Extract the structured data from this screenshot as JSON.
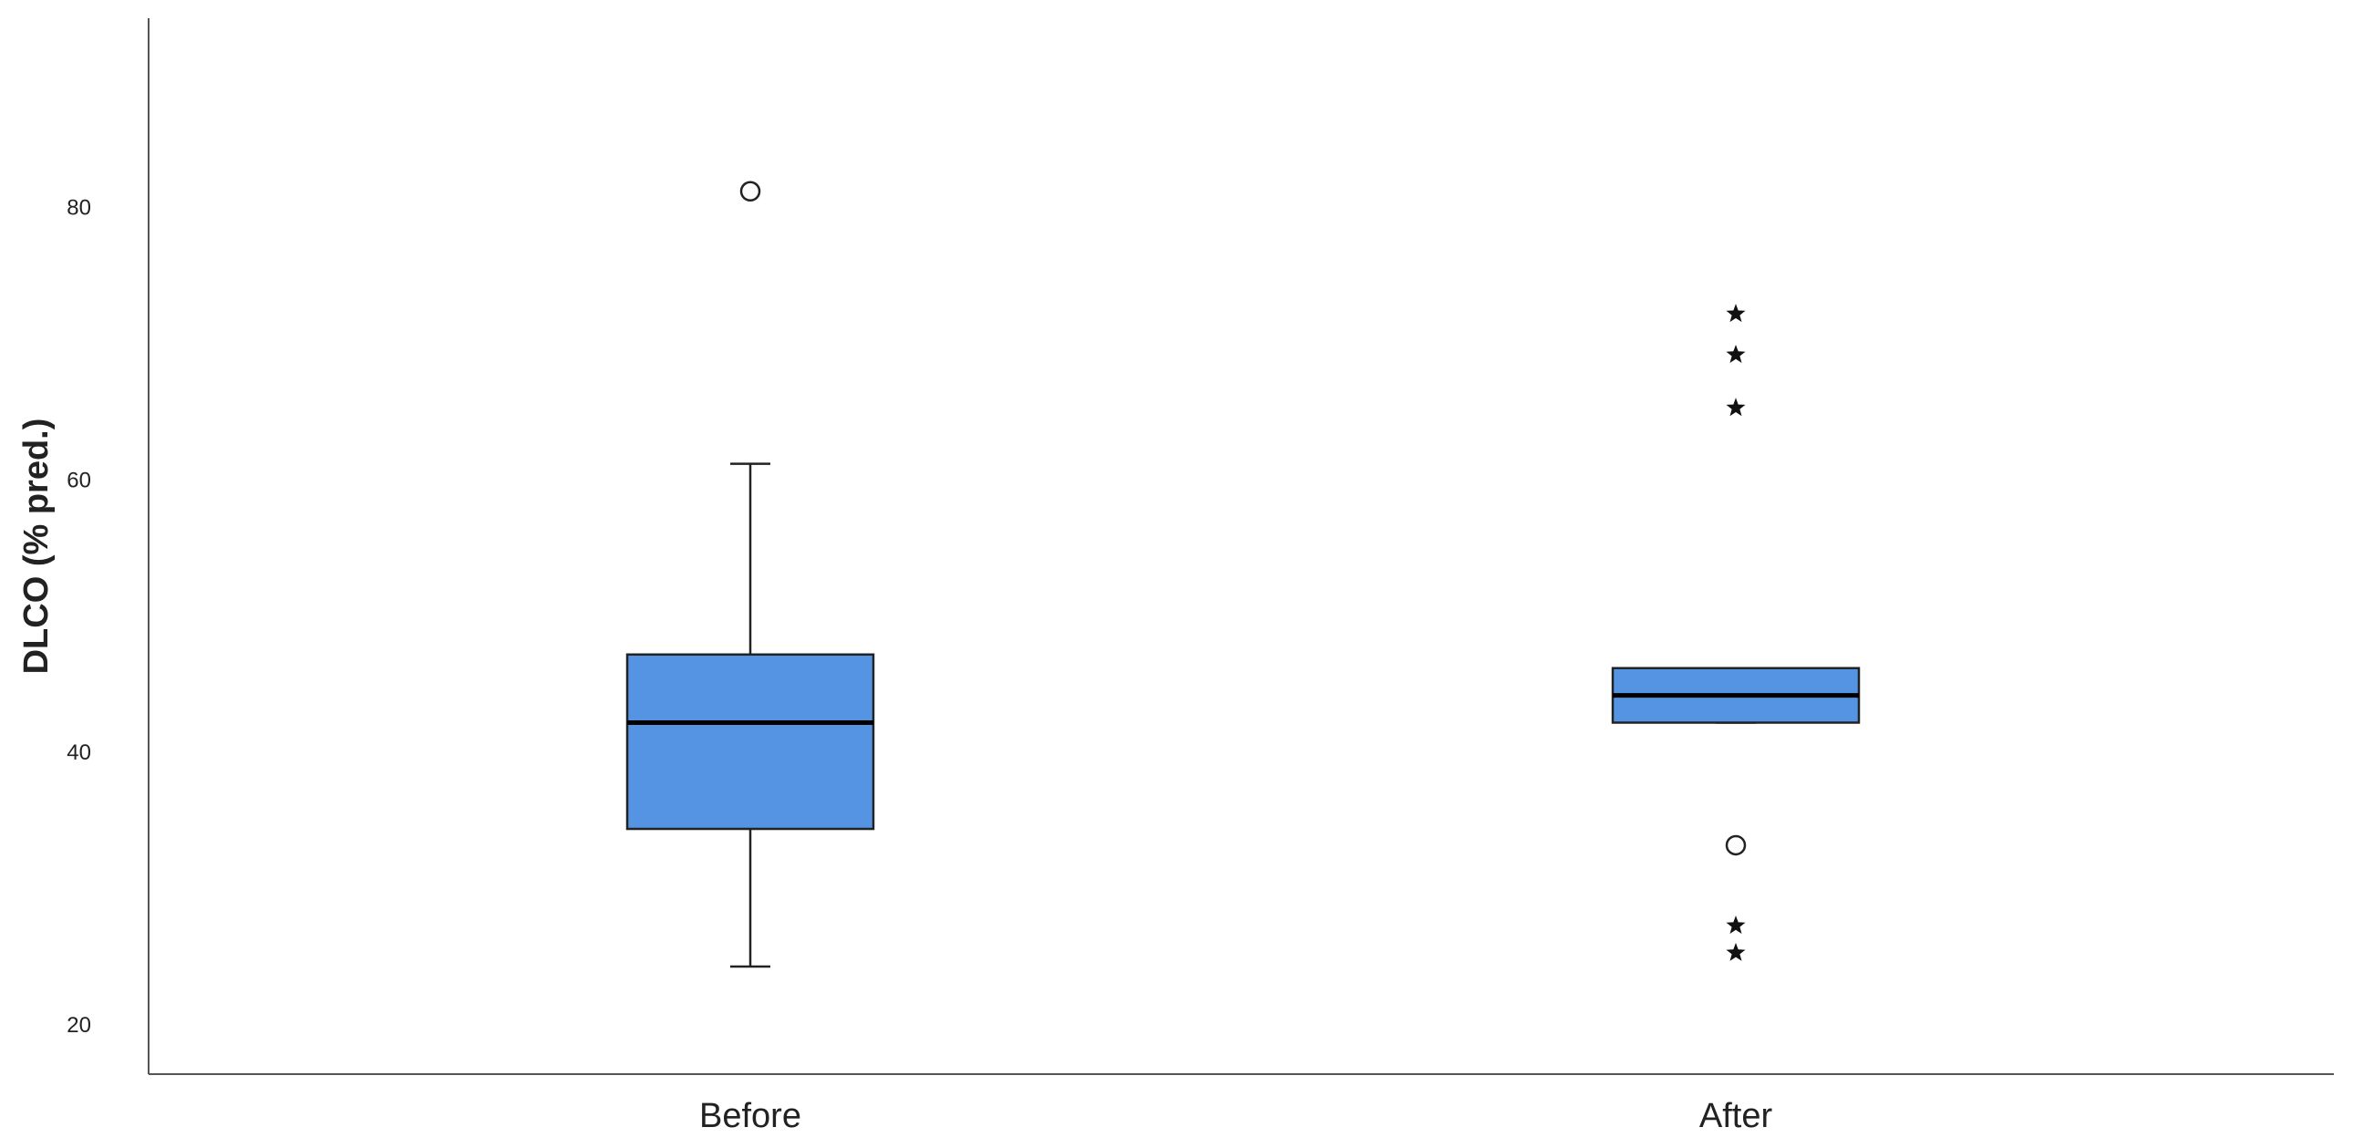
{
  "chart_data": {
    "type": "box",
    "ylabel": "DLCO (% pred.)",
    "categories": [
      "Before",
      "After"
    ],
    "color": "#5594e3",
    "boxes": [
      {
        "min": 24.4,
        "q1": 34.5,
        "median": 42.3,
        "q3": 47.3,
        "max": 61.3,
        "outliers": [
          81.3
        ],
        "extremes": []
      },
      {
        "min": 42.3,
        "q1": 42.3,
        "median": 44.3,
        "q3": 46.3,
        "max": 46.3,
        "outliers": [
          33.3
        ],
        "extremes": [
          72.3,
          69.3,
          65.4,
          27.4,
          25.4
        ]
      }
    ],
    "ylim": [
      16.5,
      94
    ],
    "yticks": [
      20,
      40,
      60,
      80
    ],
    "grid": false
  }
}
